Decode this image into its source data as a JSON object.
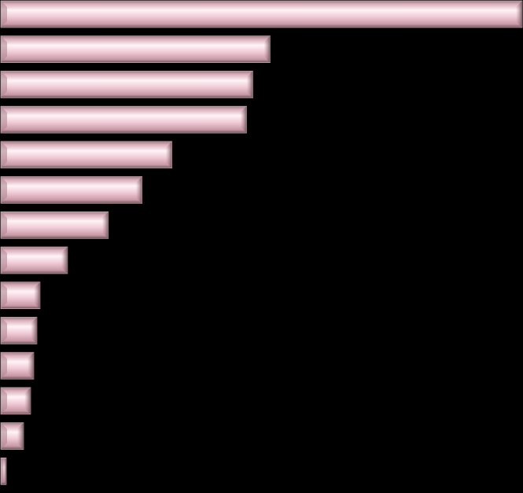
{
  "chart_data": {
    "type": "bar",
    "orientation": "horizontal",
    "values": [
      664,
      343,
      321,
      313,
      218,
      180,
      137,
      85,
      50,
      46,
      42,
      38,
      29,
      7
    ],
    "color": "#e6bcc8"
  }
}
